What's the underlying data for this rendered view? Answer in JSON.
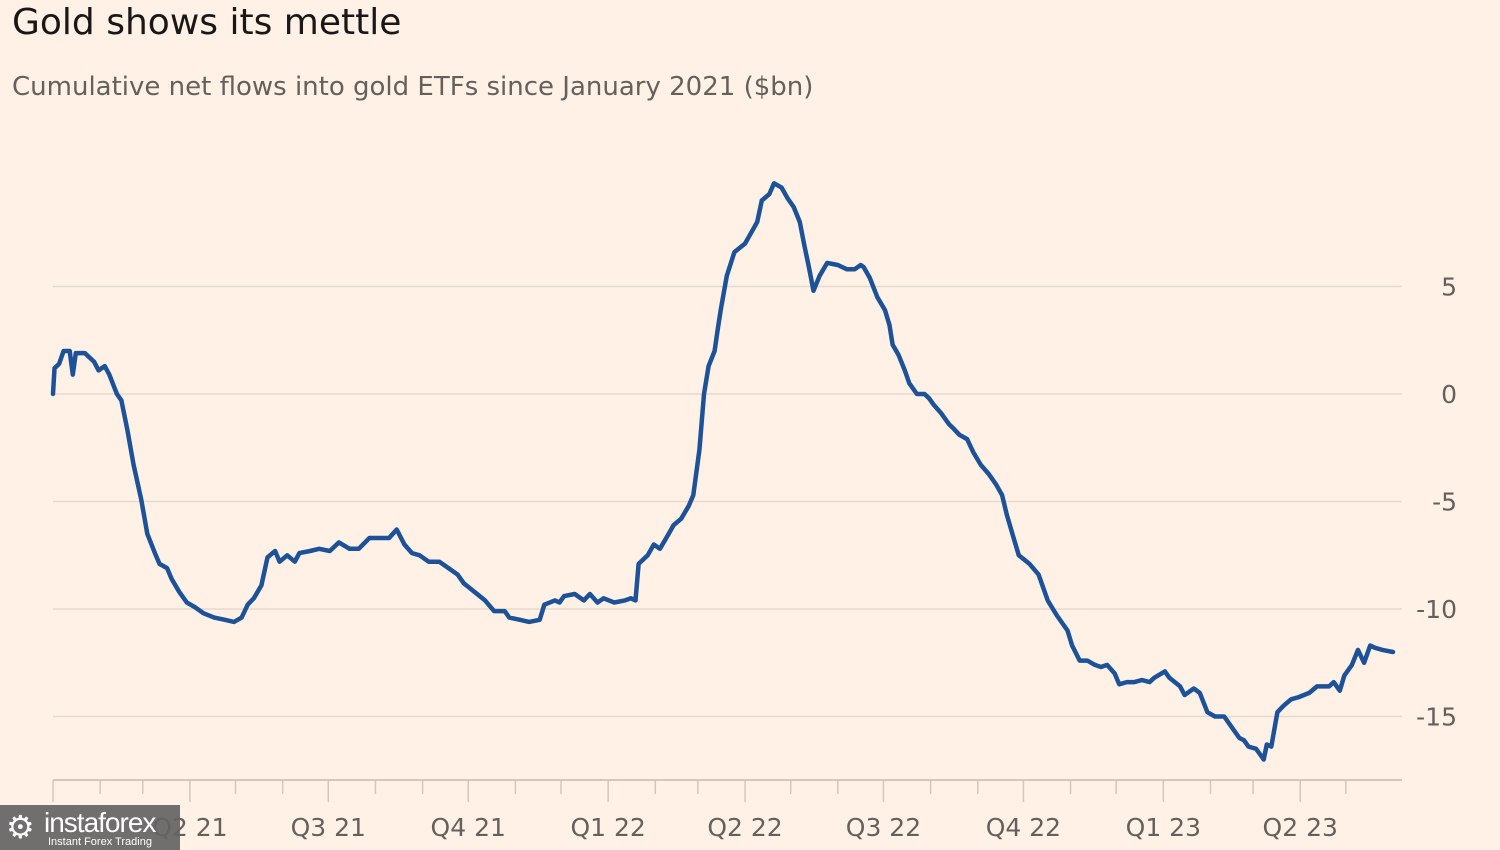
{
  "chart_data": {
    "type": "line",
    "title": "Gold shows its mettle",
    "subtitle": "Cumulative net flows into gold ETFs since January 2021 ($bn)",
    "xlabel": "",
    "ylabel": "",
    "ylim": [
      -17.5,
      10
    ],
    "xlim": [
      "2021-01-01",
      "2023-06-03"
    ],
    "yticks": [
      5,
      0,
      -5,
      -10,
      -15
    ],
    "ytick_labels": [
      "5",
      "0",
      "-5",
      "-10",
      "-15"
    ],
    "xtick_labels": [
      {
        "date": "2021-04-01",
        "label": "Q2 21"
      },
      {
        "date": "2021-07-01",
        "label": "Q3 21"
      },
      {
        "date": "2021-10-01",
        "label": "Q4 21"
      },
      {
        "date": "2022-01-01",
        "label": "Q1 22"
      },
      {
        "date": "2022-04-01",
        "label": "Q2 22"
      },
      {
        "date": "2022-07-01",
        "label": "Q3 22"
      },
      {
        "date": "2022-10-01",
        "label": "Q4 22"
      },
      {
        "date": "2023-01-01",
        "label": "Q1 23"
      },
      {
        "date": "2023-04-01",
        "label": "Q2 23"
      }
    ],
    "grid": true,
    "y_axis_side": "right",
    "line_color": "#1d5299",
    "background": "#FFF1E5",
    "series": [
      {
        "points": [
          [
            "2021-01-01",
            0.0
          ],
          [
            "2021-01-02",
            1.2
          ],
          [
            "2021-01-05",
            1.4
          ],
          [
            "2021-01-08",
            2.0
          ],
          [
            "2021-01-12",
            2.0
          ],
          [
            "2021-01-14",
            0.9
          ],
          [
            "2021-01-16",
            1.9
          ],
          [
            "2021-01-22",
            1.9
          ],
          [
            "2021-01-28",
            1.5
          ],
          [
            "2021-01-31",
            1.1
          ],
          [
            "2021-02-04",
            1.3
          ],
          [
            "2021-02-07",
            0.9
          ],
          [
            "2021-02-12",
            0.0
          ],
          [
            "2021-02-15",
            -0.3
          ],
          [
            "2021-02-19",
            -1.7
          ],
          [
            "2021-02-23",
            -3.3
          ],
          [
            "2021-02-28",
            -4.9
          ],
          [
            "2021-03-04",
            -6.5
          ],
          [
            "2021-03-09",
            -7.4
          ],
          [
            "2021-03-12",
            -7.9
          ],
          [
            "2021-03-17",
            -8.1
          ],
          [
            "2021-03-20",
            -8.6
          ],
          [
            "2021-03-25",
            -9.2
          ],
          [
            "2021-03-30",
            -9.7
          ],
          [
            "2021-04-04",
            -9.9
          ],
          [
            "2021-04-10",
            -10.2
          ],
          [
            "2021-04-17",
            -10.4
          ],
          [
            "2021-04-24",
            -10.5
          ],
          [
            "2021-04-30",
            -10.6
          ],
          [
            "2021-05-05",
            -10.4
          ],
          [
            "2021-05-09",
            -9.8
          ],
          [
            "2021-05-13",
            -9.5
          ],
          [
            "2021-05-18",
            -8.9
          ],
          [
            "2021-05-22",
            -7.6
          ],
          [
            "2021-05-27",
            -7.3
          ],
          [
            "2021-05-30",
            -7.8
          ],
          [
            "2021-06-04",
            -7.5
          ],
          [
            "2021-06-09",
            -7.8
          ],
          [
            "2021-06-12",
            -7.4
          ],
          [
            "2021-06-19",
            -7.3
          ],
          [
            "2021-06-25",
            -7.2
          ],
          [
            "2021-07-02",
            -7.3
          ],
          [
            "2021-07-08",
            -6.9
          ],
          [
            "2021-07-15",
            -7.2
          ],
          [
            "2021-07-21",
            -7.2
          ],
          [
            "2021-07-28",
            -6.7
          ],
          [
            "2021-08-04",
            -6.7
          ],
          [
            "2021-08-10",
            -6.7
          ],
          [
            "2021-08-15",
            -6.3
          ],
          [
            "2021-08-20",
            -7.0
          ],
          [
            "2021-08-25",
            -7.4
          ],
          [
            "2021-08-30",
            -7.5
          ],
          [
            "2021-09-05",
            -7.8
          ],
          [
            "2021-09-12",
            -7.8
          ],
          [
            "2021-09-18",
            -8.1
          ],
          [
            "2021-09-24",
            -8.4
          ],
          [
            "2021-09-28",
            -8.8
          ],
          [
            "2021-10-05",
            -9.2
          ],
          [
            "2021-10-12",
            -9.6
          ],
          [
            "2021-10-18",
            -10.1
          ],
          [
            "2021-10-25",
            -10.1
          ],
          [
            "2021-10-28",
            -10.4
          ],
          [
            "2021-11-04",
            -10.5
          ],
          [
            "2021-11-10",
            -10.6
          ],
          [
            "2021-11-17",
            -10.5
          ],
          [
            "2021-11-20",
            -9.8
          ],
          [
            "2021-11-27",
            -9.6
          ],
          [
            "2021-11-30",
            -9.7
          ],
          [
            "2021-12-03",
            -9.4
          ],
          [
            "2021-12-10",
            -9.3
          ],
          [
            "2021-12-16",
            -9.6
          ],
          [
            "2021-12-20",
            -9.3
          ],
          [
            "2021-12-25",
            -9.7
          ],
          [
            "2021-12-29",
            -9.5
          ],
          [
            "2022-01-05",
            -9.7
          ],
          [
            "2022-01-12",
            -9.6
          ],
          [
            "2022-01-16",
            -9.5
          ],
          [
            "2022-01-19",
            -9.6
          ],
          [
            "2022-01-21",
            -7.9
          ],
          [
            "2022-01-27",
            -7.5
          ],
          [
            "2022-01-31",
            -7.0
          ],
          [
            "2022-02-04",
            -7.2
          ],
          [
            "2022-02-09",
            -6.6
          ],
          [
            "2022-02-13",
            -6.1
          ],
          [
            "2022-02-18",
            -5.8
          ],
          [
            "2022-02-23",
            -5.2
          ],
          [
            "2022-02-26",
            -4.7
          ],
          [
            "2022-03-02",
            -2.6
          ],
          [
            "2022-03-05",
            0.0
          ],
          [
            "2022-03-08",
            1.3
          ],
          [
            "2022-03-12",
            2.0
          ],
          [
            "2022-03-14",
            3.0
          ],
          [
            "2022-03-16",
            3.9
          ],
          [
            "2022-03-20",
            5.5
          ],
          [
            "2022-03-25",
            6.6
          ],
          [
            "2022-04-01",
            7.0
          ],
          [
            "2022-04-05",
            7.5
          ],
          [
            "2022-04-09",
            8.0
          ],
          [
            "2022-04-12",
            9.0
          ],
          [
            "2022-04-17",
            9.3
          ],
          [
            "2022-04-20",
            9.8
          ],
          [
            "2022-04-25",
            9.6
          ],
          [
            "2022-04-29",
            9.1
          ],
          [
            "2022-05-03",
            8.7
          ],
          [
            "2022-05-07",
            8.0
          ],
          [
            "2022-05-10",
            6.9
          ],
          [
            "2022-05-13",
            5.9
          ],
          [
            "2022-05-16",
            4.8
          ],
          [
            "2022-05-20",
            5.5
          ],
          [
            "2022-05-25",
            6.1
          ],
          [
            "2022-06-01",
            6.0
          ],
          [
            "2022-06-07",
            5.8
          ],
          [
            "2022-06-12",
            5.8
          ],
          [
            "2022-06-16",
            6.0
          ],
          [
            "2022-06-18",
            5.9
          ],
          [
            "2022-06-22",
            5.4
          ],
          [
            "2022-06-27",
            4.5
          ],
          [
            "2022-07-02",
            3.9
          ],
          [
            "2022-07-05",
            3.2
          ],
          [
            "2022-07-07",
            2.3
          ],
          [
            "2022-07-11",
            1.8
          ],
          [
            "2022-07-15",
            1.1
          ],
          [
            "2022-07-18",
            0.5
          ],
          [
            "2022-07-23",
            0.0
          ],
          [
            "2022-07-28",
            0.0
          ],
          [
            "2022-07-31",
            -0.2
          ],
          [
            "2022-08-03",
            -0.5
          ],
          [
            "2022-08-08",
            -0.9
          ],
          [
            "2022-08-13",
            -1.4
          ],
          [
            "2022-08-16",
            -1.6
          ],
          [
            "2022-08-20",
            -1.9
          ],
          [
            "2022-08-25",
            -2.1
          ],
          [
            "2022-08-29",
            -2.7
          ],
          [
            "2022-09-03",
            -3.3
          ],
          [
            "2022-09-08",
            -3.7
          ],
          [
            "2022-09-13",
            -4.2
          ],
          [
            "2022-09-17",
            -4.7
          ],
          [
            "2022-09-20",
            -5.6
          ],
          [
            "2022-09-25",
            -6.8
          ],
          [
            "2022-09-28",
            -7.5
          ],
          [
            "2022-10-05",
            -7.9
          ],
          [
            "2022-10-11",
            -8.4
          ],
          [
            "2022-10-17",
            -9.6
          ],
          [
            "2022-10-23",
            -10.3
          ],
          [
            "2022-10-30",
            -11.0
          ],
          [
            "2022-11-02",
            -11.7
          ],
          [
            "2022-11-07",
            -12.4
          ],
          [
            "2022-11-12",
            -12.4
          ],
          [
            "2022-11-17",
            -12.6
          ],
          [
            "2022-11-21",
            -12.7
          ],
          [
            "2022-11-25",
            -12.6
          ],
          [
            "2022-11-30",
            -13.0
          ],
          [
            "2022-12-03",
            -13.5
          ],
          [
            "2022-12-08",
            -13.4
          ],
          [
            "2022-12-13",
            -13.4
          ],
          [
            "2022-12-18",
            -13.3
          ],
          [
            "2022-12-23",
            -13.4
          ],
          [
            "2022-12-26",
            -13.2
          ],
          [
            "2023-01-02",
            -12.9
          ],
          [
            "2023-01-05",
            -13.2
          ],
          [
            "2023-01-12",
            -13.6
          ],
          [
            "2023-01-15",
            -14.0
          ],
          [
            "2023-01-21",
            -13.7
          ],
          [
            "2023-01-25",
            -13.9
          ],
          [
            "2023-01-30",
            -14.8
          ],
          [
            "2023-02-04",
            -15.0
          ],
          [
            "2023-02-10",
            -15.0
          ],
          [
            "2023-02-15",
            -15.5
          ],
          [
            "2023-02-20",
            -16.0
          ],
          [
            "2023-02-23",
            -16.1
          ],
          [
            "2023-02-26",
            -16.4
          ],
          [
            "2023-03-03",
            -16.5
          ],
          [
            "2023-03-08",
            -17.0
          ],
          [
            "2023-03-10",
            -16.3
          ],
          [
            "2023-03-13",
            -16.4
          ],
          [
            "2023-03-17",
            -14.8
          ],
          [
            "2023-03-21",
            -14.5
          ],
          [
            "2023-03-26",
            -14.2
          ],
          [
            "2023-03-31",
            -14.1
          ],
          [
            "2023-04-07",
            -13.9
          ],
          [
            "2023-04-12",
            -13.6
          ],
          [
            "2023-04-20",
            -13.6
          ],
          [
            "2023-04-23",
            -13.4
          ],
          [
            "2023-04-27",
            -13.8
          ],
          [
            "2023-04-30",
            -13.1
          ],
          [
            "2023-05-05",
            -12.6
          ],
          [
            "2023-05-09",
            -11.9
          ],
          [
            "2023-05-13",
            -12.5
          ],
          [
            "2023-05-17",
            -11.7
          ],
          [
            "2023-05-20",
            -11.8
          ],
          [
            "2023-05-25",
            -11.9
          ],
          [
            "2023-06-01",
            -12.0
          ]
        ]
      }
    ]
  },
  "watermark": {
    "name": "instaforex",
    "tagline": "Instant Forex Trading"
  }
}
